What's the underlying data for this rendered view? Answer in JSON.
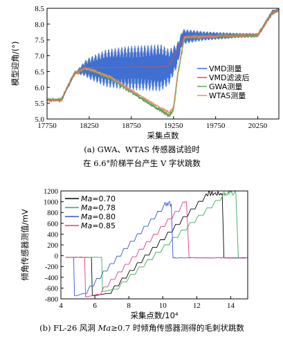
{
  "chart_data": [
    {
      "type": "line",
      "caption_line1": "(a) GWA、WTAS 传感器试验时",
      "caption_line2": "在 6.6°阶梯平台产生 V 字状跳数",
      "xlabel": "采集点数",
      "ylabel": "模型迎角/(°)",
      "xlim": [
        17750,
        20500
      ],
      "ylim": [
        5.0,
        8.5
      ],
      "xticks": [
        17750,
        18250,
        18750,
        19250,
        19750,
        20250
      ],
      "yticks": [
        5.0,
        5.5,
        6.0,
        6.5,
        7.0,
        7.5,
        8.0,
        8.5
      ],
      "legend_position": "bottom-right",
      "series": [
        {
          "name": "VMD测量",
          "color": "#3f6fd1",
          "style": "oscillating",
          "center": [
            [
              17750,
              5.6
            ],
            [
              17920,
              5.6
            ],
            [
              18000,
              6.0
            ],
            [
              18080,
              6.45
            ],
            [
              18200,
              6.6
            ],
            [
              19100,
              6.62
            ],
            [
              19200,
              6.65
            ],
            [
              19290,
              7.0
            ],
            [
              19360,
              7.6
            ],
            [
              19500,
              7.62
            ],
            [
              20250,
              7.65
            ],
            [
              20310,
              7.9
            ],
            [
              20420,
              8.4
            ],
            [
              20500,
              8.45
            ]
          ],
          "amplitude": [
            [
              17750,
              0
            ],
            [
              17980,
              0
            ],
            [
              18100,
              0.05
            ],
            [
              18250,
              0.35
            ],
            [
              18450,
              0.6
            ],
            [
              18700,
              0.7
            ],
            [
              19100,
              0.75
            ],
            [
              19260,
              0.45
            ],
            [
              19350,
              0.25
            ],
            [
              19600,
              0.15
            ],
            [
              20000,
              0.08
            ],
            [
              20280,
              0.06
            ],
            [
              20500,
              0.04
            ]
          ]
        },
        {
          "name": "VMD滤波后",
          "color": "#d9534f",
          "style": "smooth",
          "points": [
            [
              17750,
              5.6
            ],
            [
              17920,
              5.6
            ],
            [
              18000,
              6.05
            ],
            [
              18080,
              6.45
            ],
            [
              18200,
              6.62
            ],
            [
              19150,
              6.65
            ],
            [
              19200,
              6.7
            ],
            [
              19300,
              7.2
            ],
            [
              19380,
              7.62
            ],
            [
              20250,
              7.65
            ],
            [
              20300,
              7.85
            ],
            [
              20420,
              8.35
            ],
            [
              20500,
              8.45
            ]
          ]
        },
        {
          "name": "GWA测量",
          "color": "#59a85c",
          "style": "noisy",
          "noise": 0.04,
          "points": [
            [
              17750,
              5.6
            ],
            [
              17920,
              5.6
            ],
            [
              18000,
              6.05
            ],
            [
              18080,
              6.45
            ],
            [
              18200,
              6.6
            ],
            [
              18300,
              6.52
            ],
            [
              18500,
              6.3
            ],
            [
              18700,
              5.95
            ],
            [
              18900,
              5.6
            ],
            [
              19050,
              5.35
            ],
            [
              19150,
              5.2
            ],
            [
              19200,
              5.1
            ],
            [
              19250,
              5.3
            ],
            [
              19300,
              6.4
            ],
            [
              19380,
              7.6
            ],
            [
              20250,
              7.65
            ],
            [
              20300,
              7.85
            ],
            [
              20420,
              8.35
            ],
            [
              20500,
              8.45
            ]
          ]
        },
        {
          "name": "WTAS测量",
          "color": "#f08a5a",
          "style": "noisy",
          "noise": 0.03,
          "points": [
            [
              17750,
              5.6
            ],
            [
              17920,
              5.6
            ],
            [
              18000,
              6.05
            ],
            [
              18080,
              6.45
            ],
            [
              18200,
              6.6
            ],
            [
              18300,
              6.54
            ],
            [
              18500,
              6.33
            ],
            [
              18700,
              5.99
            ],
            [
              18900,
              5.66
            ],
            [
              19050,
              5.42
            ],
            [
              19150,
              5.28
            ],
            [
              19200,
              5.2
            ],
            [
              19250,
              5.38
            ],
            [
              19300,
              6.45
            ],
            [
              19380,
              7.6
            ],
            [
              20250,
              7.65
            ],
            [
              20300,
              7.85
            ],
            [
              20420,
              8.35
            ],
            [
              20500,
              8.45
            ]
          ]
        }
      ]
    },
    {
      "type": "line",
      "caption_prefix": "(b) FL-26 风洞 ",
      "caption_italic": "Ma",
      "caption_suffix": "≥0.7 时倾角传感器测得的毛刺状跳数",
      "xlabel": "采集点数/10⁴",
      "ylabel": "倾角传感器测值/mV",
      "xlim": [
        4,
        15
      ],
      "ylim": [
        -800,
        1200
      ],
      "xticks": [
        4,
        6,
        8,
        10,
        12,
        14
      ],
      "yticks": [
        -800,
        -600,
        -400,
        -200,
        0,
        200,
        400,
        600,
        800,
        1000,
        1200
      ],
      "legend_position": "top-left",
      "series": [
        {
          "name_italic": "Ma",
          "name": "=0.70",
          "color": "#000000",
          "start_x": 4.3,
          "drop_x": 5.8,
          "low_start": 6.0,
          "step_start": 6.7,
          "step_width": 0.45,
          "step_count": 13,
          "step_low": -700,
          "step_top": 1150,
          "top_end": 13.5,
          "drop_end": 13.6,
          "end_x": 15.0
        },
        {
          "name_italic": "Ma",
          "name": "=0.78",
          "color": "#3aaa55",
          "start_x": 4.3,
          "drop_x": 6.4,
          "low_start": 6.6,
          "step_start": 7.1,
          "step_width": 0.5,
          "step_count": 13,
          "step_low": -620,
          "step_top": 1160,
          "top_end": 14.3,
          "drop_end": 14.45,
          "end_x": 15.0
        },
        {
          "name_italic": "Ma",
          "name": "=0.80",
          "color": "#3355cc",
          "start_x": 4.3,
          "drop_x": 4.75,
          "low_start": 4.95,
          "step_start": 5.3,
          "step_width": 0.4,
          "step_count": 12,
          "step_low": -700,
          "step_top": 960,
          "top_end": 10.5,
          "drop_end": 10.6,
          "end_x": 15.0
        },
        {
          "name_italic": "Ma",
          "name": "=0.85",
          "color": "#e8358a",
          "start_x": 4.3,
          "drop_x": 5.4,
          "low_start": 5.55,
          "step_start": 6.1,
          "step_width": 0.42,
          "step_count": 12,
          "step_low": -720,
          "step_top": 960,
          "top_end": 11.4,
          "drop_end": 11.55,
          "end_x": 15.0
        }
      ]
    }
  ]
}
